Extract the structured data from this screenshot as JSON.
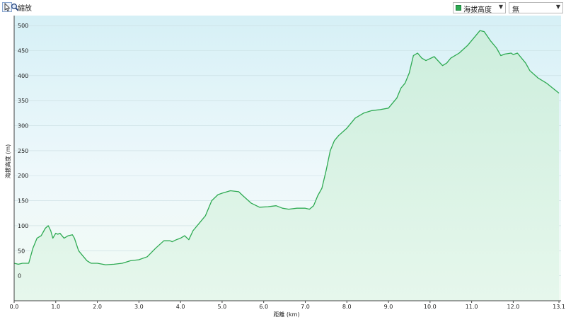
{
  "toolbar": {
    "pointer_icon": "cursor-arrow-icon",
    "zoom_icon": "magnifier-icon",
    "zoom_label": "縮放",
    "series_select": "海拔高度",
    "second_select": "無"
  },
  "colors": {
    "line": "#2eaa52",
    "fill_top": "#d9f2f8",
    "fill_bottom": "#e8f7ec",
    "grid": "#c8dce0"
  },
  "chart_data": {
    "type": "area",
    "xlabel": "距離 (km)",
    "ylabel": "海拔高度 (m)",
    "xlim": [
      0,
      13.15
    ],
    "ylim": [
      -50,
      520
    ],
    "x_ticks": [
      "0.0",
      "1.0",
      "2.0",
      "3.0",
      "4.0",
      "5.0",
      "6.0",
      "7.0",
      "8.0",
      "9.0",
      "10.0",
      "11.0",
      "12.0",
      "13.1"
    ],
    "y_ticks": [
      "500",
      "450",
      "400",
      "350",
      "300",
      "250",
      "200",
      "150",
      "100",
      "50",
      "0"
    ],
    "grid": true,
    "series": [
      {
        "x": [
          0.0,
          0.1,
          0.2,
          0.35,
          0.45,
          0.55,
          0.65,
          0.75,
          0.82,
          0.88,
          0.93,
          1.0,
          1.05,
          1.1,
          1.2,
          1.3,
          1.4,
          1.45,
          1.55,
          1.65,
          1.75,
          1.85,
          2.0,
          2.2,
          2.4,
          2.6,
          2.8,
          3.0,
          3.2,
          3.4,
          3.6,
          3.75,
          3.8,
          3.9,
          4.0,
          4.1,
          4.2,
          4.3,
          4.45,
          4.6,
          4.75,
          4.9,
          5.0,
          5.2,
          5.4,
          5.5,
          5.7,
          5.9,
          6.1,
          6.3,
          6.45,
          6.6,
          6.8,
          7.0,
          7.1,
          7.2,
          7.25,
          7.3,
          7.4,
          7.5,
          7.6,
          7.7,
          7.8,
          8.0,
          8.2,
          8.4,
          8.6,
          8.8,
          9.0,
          9.1,
          9.2,
          9.3,
          9.4,
          9.5,
          9.6,
          9.7,
          9.8,
          9.9,
          10.1,
          10.3,
          10.4,
          10.5,
          10.7,
          10.9,
          11.1,
          11.2,
          11.3,
          11.45,
          11.6,
          11.7,
          11.8,
          11.95,
          12.0,
          12.1,
          12.3,
          12.4,
          12.6,
          12.8,
          12.95,
          13.1
        ],
        "values": [
          25,
          23,
          25,
          25,
          55,
          75,
          80,
          95,
          100,
          90,
          75,
          85,
          83,
          85,
          75,
          80,
          82,
          75,
          50,
          40,
          30,
          25,
          25,
          22,
          23,
          25,
          30,
          32,
          38,
          55,
          70,
          70,
          68,
          72,
          75,
          80,
          72,
          90,
          105,
          120,
          150,
          162,
          165,
          170,
          168,
          160,
          145,
          137,
          138,
          140,
          135,
          133,
          135,
          135,
          133,
          140,
          150,
          160,
          175,
          210,
          250,
          270,
          280,
          295,
          315,
          325,
          330,
          332,
          335,
          345,
          355,
          375,
          385,
          405,
          440,
          445,
          435,
          430,
          438,
          420,
          425,
          435,
          445,
          460,
          480,
          490,
          488,
          470,
          455,
          440,
          443,
          445,
          442,
          445,
          425,
          410,
          395,
          385,
          375,
          365
        ]
      }
    ]
  }
}
